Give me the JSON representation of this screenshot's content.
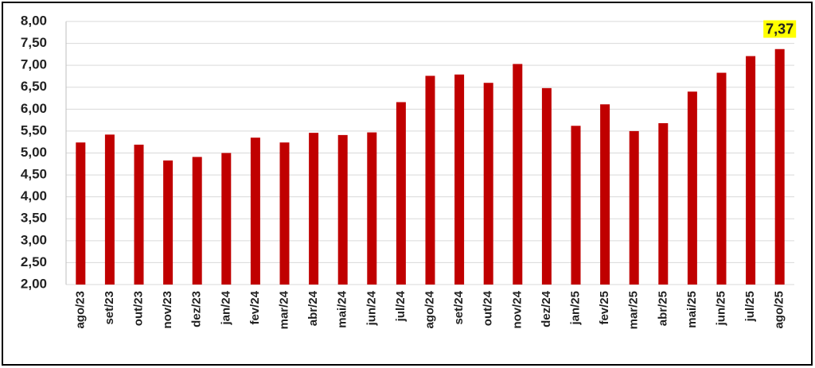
{
  "chart_data": {
    "type": "bar",
    "categories": [
      "ago/23",
      "set/23",
      "out/23",
      "nov/23",
      "dez/23",
      "jan/24",
      "fev/24",
      "mar/24",
      "abr/24",
      "mai/24",
      "jun/24",
      "jul/24",
      "ago/24",
      "set/24",
      "out/24",
      "nov/24",
      "dez/24",
      "jan/25",
      "fev/25",
      "mar/25",
      "abr/25",
      "mai/25",
      "jun/25",
      "jul/25",
      "ago/25"
    ],
    "values": [
      5.24,
      5.42,
      5.19,
      4.83,
      4.91,
      5.0,
      5.35,
      5.24,
      5.46,
      5.41,
      5.47,
      6.16,
      6.76,
      6.79,
      6.6,
      7.03,
      6.48,
      5.62,
      6.11,
      5.5,
      5.68,
      6.4,
      6.83,
      7.21,
      7.37
    ],
    "value_labels": [
      null,
      null,
      null,
      null,
      null,
      null,
      null,
      null,
      null,
      null,
      null,
      null,
      null,
      null,
      null,
      null,
      null,
      null,
      null,
      null,
      null,
      null,
      null,
      null,
      "7,37"
    ],
    "color": "#c00000",
    "ylim": [
      2,
      8
    ],
    "yticks": [
      {
        "value": 2,
        "label": "2,00"
      },
      {
        "value": 2.5,
        "label": "2,50"
      },
      {
        "value": 3,
        "label": "3,00"
      },
      {
        "value": 3.5,
        "label": "3,50"
      },
      {
        "value": 4,
        "label": "4,00"
      },
      {
        "value": 4.5,
        "label": "4,50"
      },
      {
        "value": 5,
        "label": "5,00"
      },
      {
        "value": 5.5,
        "label": "5,50"
      },
      {
        "value": 6,
        "label": "6,00"
      },
      {
        "value": 6.5,
        "label": "6,50"
      },
      {
        "value": 7,
        "label": "7,00"
      },
      {
        "value": 7.5,
        "label": "7,50"
      },
      {
        "value": 8,
        "label": "8,00"
      }
    ],
    "grid": true
  }
}
